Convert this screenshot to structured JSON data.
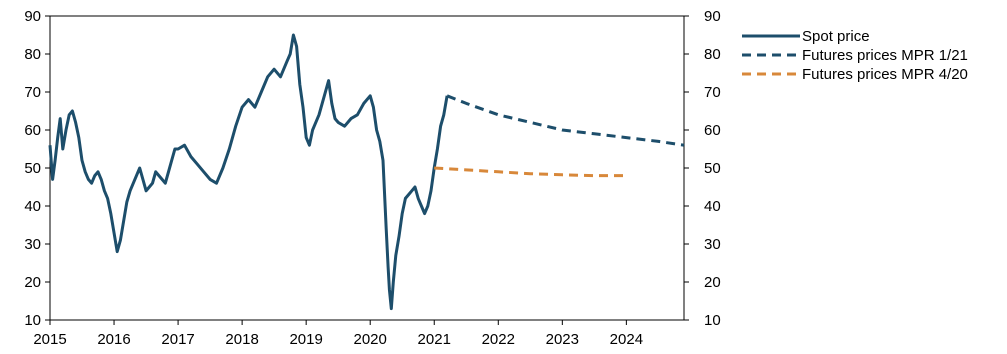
{
  "chart_data": {
    "type": "line",
    "title": "",
    "xlabel": "",
    "ylabel": "",
    "xlim": [
      2015.0,
      2024.9
    ],
    "ylim": [
      10,
      90
    ],
    "x_ticks": [
      "2015",
      "2016",
      "2017",
      "2018",
      "2019",
      "2020",
      "2021",
      "2022",
      "2023",
      "2024"
    ],
    "y_ticks": [
      "10",
      "20",
      "30",
      "40",
      "50",
      "60",
      "70",
      "80",
      "90"
    ],
    "grid": false,
    "legend_position": "right",
    "series": [
      {
        "name": "Spot price",
        "color": "#1d4e6b",
        "style": "solid",
        "x": [
          2015.0,
          2015.04,
          2015.08,
          2015.12,
          2015.16,
          2015.2,
          2015.25,
          2015.3,
          2015.35,
          2015.4,
          2015.45,
          2015.5,
          2015.55,
          2015.6,
          2015.65,
          2015.7,
          2015.75,
          2015.8,
          2015.85,
          2015.9,
          2015.95,
          2016.0,
          2016.05,
          2016.1,
          2016.15,
          2016.2,
          2016.25,
          2016.3,
          2016.35,
          2016.4,
          2016.45,
          2016.5,
          2016.55,
          2016.6,
          2016.65,
          2016.7,
          2016.75,
          2016.8,
          2016.85,
          2016.9,
          2016.95,
          2017.0,
          2017.1,
          2017.2,
          2017.3,
          2017.4,
          2017.5,
          2017.6,
          2017.7,
          2017.8,
          2017.9,
          2018.0,
          2018.1,
          2018.2,
          2018.3,
          2018.4,
          2018.5,
          2018.6,
          2018.7,
          2018.75,
          2018.8,
          2018.85,
          2018.9,
          2018.95,
          2019.0,
          2019.05,
          2019.1,
          2019.2,
          2019.3,
          2019.35,
          2019.4,
          2019.45,
          2019.5,
          2019.6,
          2019.7,
          2019.8,
          2019.9,
          2020.0,
          2020.05,
          2020.1,
          2020.15,
          2020.2,
          2020.25,
          2020.28,
          2020.3,
          2020.33,
          2020.36,
          2020.4,
          2020.45,
          2020.5,
          2020.55,
          2020.6,
          2020.65,
          2020.7,
          2020.75,
          2020.8,
          2020.85,
          2020.9,
          2020.95,
          2021.0,
          2021.05,
          2021.1,
          2021.15,
          2021.2
        ],
        "values": [
          56,
          47,
          52,
          58,
          63,
          55,
          60,
          64,
          65,
          62,
          58,
          52,
          49,
          47,
          46,
          48,
          49,
          47,
          44,
          42,
          38,
          33,
          28,
          31,
          36,
          41,
          44,
          46,
          48,
          50,
          47,
          44,
          45,
          46,
          49,
          48,
          47,
          46,
          49,
          52,
          55,
          55,
          56,
          53,
          51,
          49,
          47,
          46,
          50,
          55,
          61,
          66,
          68,
          66,
          70,
          74,
          76,
          74,
          78,
          80,
          85,
          82,
          72,
          66,
          58,
          56,
          60,
          64,
          70,
          73,
          67,
          63,
          62,
          61,
          63,
          64,
          67,
          69,
          66,
          60,
          57,
          52,
          34,
          24,
          18,
          13,
          20,
          27,
          32,
          38,
          42,
          43,
          44,
          45,
          42,
          40,
          38,
          40,
          44,
          50,
          55,
          61,
          64,
          69
        ]
      },
      {
        "name": "Futures prices MPR 1/21",
        "color": "#1d4e6b",
        "style": "dashed",
        "x": [
          2021.2,
          2021.5,
          2022.0,
          2022.5,
          2023.0,
          2023.5,
          2024.0,
          2024.5,
          2024.9
        ],
        "values": [
          69,
          67,
          64,
          62,
          60,
          59,
          58,
          57,
          56
        ]
      },
      {
        "name": "Futures prices MPR 4/20",
        "color": "#d8883a",
        "style": "dashed",
        "x": [
          2021.0,
          2021.5,
          2022.0,
          2022.5,
          2023.0,
          2023.5,
          2023.95
        ],
        "values": [
          50,
          49.5,
          49,
          48.5,
          48.2,
          48,
          48
        ]
      }
    ]
  }
}
